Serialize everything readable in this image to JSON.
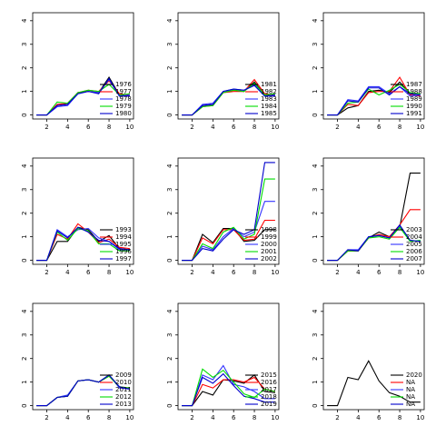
{
  "chart_data": [
    {
      "type": "line",
      "x": [
        1,
        2,
        3,
        4,
        5,
        6,
        7,
        8,
        9,
        10
      ],
      "xlim": [
        0.64,
        10.36
      ],
      "ylim": [
        -0.17,
        4.34
      ],
      "xticks": [
        2,
        4,
        6,
        8,
        10
      ],
      "yticks": [
        0,
        1,
        2,
        3,
        4
      ],
      "legend": "bottomright",
      "series": [
        {
          "name": "1976",
          "color": "#000000",
          "values": [
            0,
            0,
            0.4,
            0.45,
            0.95,
            1.0,
            0.95,
            1.6,
            0.85,
            0.8
          ]
        },
        {
          "name": "1977",
          "color": "#ff0000",
          "values": [
            0,
            0,
            0.45,
            0.5,
            0.95,
            1.05,
            1.0,
            1.45,
            0.9,
            0.85
          ]
        },
        {
          "name": "1978",
          "color": "#3333ff",
          "values": [
            0,
            0,
            0.35,
            0.4,
            0.9,
            1.0,
            0.95,
            1.5,
            0.8,
            0.85
          ]
        },
        {
          "name": "1979",
          "color": "#00dd00",
          "values": [
            0,
            0,
            0.55,
            0.5,
            0.95,
            1.05,
            1.0,
            1.3,
            0.85,
            0.9
          ]
        },
        {
          "name": "1980",
          "color": "#0000cc",
          "values": [
            0,
            0,
            0.4,
            0.45,
            0.9,
            1.0,
            0.9,
            1.55,
            0.8,
            0.8
          ]
        }
      ]
    },
    {
      "type": "line",
      "x": [
        1,
        2,
        3,
        4,
        5,
        6,
        7,
        8,
        9,
        10
      ],
      "xlim": [
        0.64,
        10.36
      ],
      "ylim": [
        -0.17,
        4.34
      ],
      "xticks": [
        2,
        4,
        6,
        8,
        10
      ],
      "yticks": [
        0,
        1,
        2,
        3,
        4
      ],
      "legend": "bottomright",
      "series": [
        {
          "name": "1981",
          "color": "#000000",
          "values": [
            0,
            0,
            0.4,
            0.45,
            0.95,
            1.05,
            1.0,
            1.4,
            0.85,
            0.8
          ]
        },
        {
          "name": "1982",
          "color": "#ff0000",
          "values": [
            0,
            0,
            0.35,
            0.4,
            0.95,
            1.0,
            1.0,
            1.5,
            0.9,
            0.85
          ]
        },
        {
          "name": "1983",
          "color": "#3333ff",
          "values": [
            0,
            0,
            0.45,
            0.5,
            1.0,
            1.1,
            1.05,
            1.3,
            0.8,
            0.8
          ]
        },
        {
          "name": "1984",
          "color": "#00dd00",
          "values": [
            0,
            0,
            0.35,
            0.4,
            0.95,
            1.05,
            1.0,
            1.35,
            0.85,
            0.9
          ]
        },
        {
          "name": "1985",
          "color": "#0000cc",
          "values": [
            0,
            0,
            0.4,
            0.45,
            1.0,
            1.1,
            1.05,
            1.25,
            0.8,
            0.85
          ]
        }
      ]
    },
    {
      "type": "line",
      "x": [
        1,
        2,
        3,
        4,
        5,
        6,
        7,
        8,
        9,
        10
      ],
      "xlim": [
        0.64,
        10.36
      ],
      "ylim": [
        -0.17,
        4.34
      ],
      "xticks": [
        2,
        4,
        6,
        8,
        10
      ],
      "yticks": [
        0,
        1,
        2,
        3,
        4
      ],
      "legend": "bottomright",
      "series": [
        {
          "name": "1987",
          "color": "#000000",
          "values": [
            0,
            0,
            0.3,
            0.4,
            1.0,
            1.05,
            0.95,
            1.4,
            0.9,
            0.85
          ]
        },
        {
          "name": "1988",
          "color": "#ff0000",
          "values": [
            0,
            0,
            0.45,
            0.4,
            0.95,
            1.0,
            1.0,
            1.6,
            0.85,
            0.8
          ]
        },
        {
          "name": "1989",
          "color": "#3333ff",
          "values": [
            0,
            0,
            0.65,
            0.6,
            1.2,
            1.2,
            0.9,
            1.2,
            0.8,
            0.85
          ]
        },
        {
          "name": "1990",
          "color": "#00dd00",
          "values": [
            0,
            0,
            0.5,
            0.55,
            1.1,
            0.85,
            1.05,
            1.3,
            0.95,
            0.9
          ]
        },
        {
          "name": "1991",
          "color": "#0000cc",
          "values": [
            0,
            0,
            0.6,
            0.55,
            1.15,
            1.15,
            0.85,
            1.2,
            0.9,
            0.85
          ]
        }
      ]
    },
    {
      "type": "line",
      "x": [
        1,
        2,
        3,
        4,
        5,
        6,
        7,
        8,
        9,
        10
      ],
      "xlim": [
        0.64,
        10.36
      ],
      "ylim": [
        -0.17,
        4.34
      ],
      "xticks": [
        2,
        4,
        6,
        8,
        10
      ],
      "yticks": [
        0,
        1,
        2,
        3,
        4
      ],
      "legend": "bottomright",
      "series": [
        {
          "name": "1993",
          "color": "#000000",
          "values": [
            0,
            0,
            0.8,
            0.8,
            1.4,
            1.3,
            0.8,
            1.05,
            0.5,
            0.45
          ]
        },
        {
          "name": "1994",
          "color": "#ff0000",
          "values": [
            0,
            0,
            1.1,
            0.9,
            1.55,
            1.2,
            0.75,
            0.9,
            0.55,
            0.5
          ]
        },
        {
          "name": "1995",
          "color": "#3333ff",
          "values": [
            0,
            0,
            1.3,
            1.0,
            1.3,
            1.35,
            0.95,
            0.8,
            0.45,
            0.45
          ]
        },
        {
          "name": "1996",
          "color": "#00dd00",
          "values": [
            0,
            0,
            1.2,
            0.85,
            1.35,
            1.25,
            0.7,
            0.7,
            0.4,
            0.4
          ]
        },
        {
          "name": "1997",
          "color": "#0000cc",
          "values": [
            0,
            0,
            1.25,
            0.95,
            1.4,
            1.2,
            0.85,
            0.8,
            0.5,
            0.45
          ]
        }
      ]
    },
    {
      "type": "line",
      "x": [
        1,
        2,
        3,
        4,
        5,
        6,
        7,
        8,
        9,
        10
      ],
      "xlim": [
        0.64,
        10.36
      ],
      "ylim": [
        -0.17,
        4.34
      ],
      "xticks": [
        2,
        4,
        6,
        8,
        10
      ],
      "yticks": [
        0,
        1,
        2,
        3,
        4
      ],
      "legend": "bottomright",
      "series": [
        {
          "name": "1998",
          "color": "#000000",
          "values": [
            0,
            0,
            1.1,
            0.75,
            1.35,
            1.35,
            0.8,
            0.85,
            1.3,
            1.3
          ]
        },
        {
          "name": "1999",
          "color": "#ff0000",
          "values": [
            0,
            0,
            0.95,
            0.7,
            1.3,
            1.3,
            0.85,
            0.9,
            1.7,
            1.7
          ]
        },
        {
          "name": "2000",
          "color": "#3333ff",
          "values": [
            0,
            0,
            0.6,
            0.45,
            1.0,
            1.35,
            1.0,
            1.2,
            2.5,
            2.5
          ]
        },
        {
          "name": "2001",
          "color": "#00dd00",
          "values": [
            0,
            0,
            0.7,
            0.5,
            1.2,
            1.4,
            0.9,
            1.1,
            3.45,
            3.45
          ]
        },
        {
          "name": "2002",
          "color": "#0000cc",
          "values": [
            0,
            0,
            0.5,
            0.4,
            0.9,
            1.3,
            1.1,
            1.3,
            4.15,
            4.15
          ]
        }
      ]
    },
    {
      "type": "line",
      "x": [
        1,
        2,
        3,
        4,
        5,
        6,
        7,
        8,
        9,
        10
      ],
      "xlim": [
        0.64,
        10.36
      ],
      "ylim": [
        -0.17,
        4.34
      ],
      "xticks": [
        2,
        4,
        6,
        8,
        10
      ],
      "yticks": [
        0,
        1,
        2,
        3,
        4
      ],
      "legend": "bottomright",
      "series": [
        {
          "name": "2003",
          "color": "#000000",
          "values": [
            0,
            0,
            0.4,
            0.4,
            0.95,
            1.2,
            1.0,
            1.4,
            3.7,
            3.7
          ]
        },
        {
          "name": "2004",
          "color": "#ff0000",
          "values": [
            0,
            0,
            0.4,
            0.4,
            0.95,
            1.1,
            1.0,
            1.5,
            2.15,
            2.15
          ]
        },
        {
          "name": "2005",
          "color": "#3333ff",
          "values": [
            0,
            0,
            0.45,
            0.45,
            1.0,
            1.05,
            0.95,
            1.45,
            0.85,
            0.8
          ]
        },
        {
          "name": "2006",
          "color": "#00dd00",
          "values": [
            0,
            0,
            0.4,
            0.4,
            0.95,
            1.0,
            0.9,
            1.4,
            0.8,
            0.85
          ]
        },
        {
          "name": "2007",
          "color": "#0000cc",
          "values": [
            0,
            0,
            0.45,
            0.4,
            1.0,
            1.05,
            0.95,
            1.5,
            0.85,
            0.8
          ]
        }
      ]
    },
    {
      "type": "line",
      "x": [
        1,
        2,
        3,
        4,
        5,
        6,
        7,
        8,
        9,
        10
      ],
      "xlim": [
        0.64,
        10.36
      ],
      "ylim": [
        -0.17,
        4.34
      ],
      "xticks": [
        2,
        4,
        6,
        8,
        10
      ],
      "yticks": [
        0,
        1,
        2,
        3,
        4
      ],
      "legend": "bottomright",
      "series": [
        {
          "name": "2009",
          "color": "#000000",
          "values": [
            0,
            0,
            0.35,
            0.4,
            1.05,
            1.1,
            1.0,
            1.3,
            0.8,
            0.7
          ]
        },
        {
          "name": "2010",
          "color": "#ff0000",
          "values": [
            0,
            0,
            0.35,
            0.4,
            1.05,
            1.1,
            1.0,
            1.25,
            0.8,
            0.75
          ]
        },
        {
          "name": "2011",
          "color": "#3333ff",
          "values": [
            0,
            0,
            0.35,
            0.45,
            1.05,
            1.1,
            1.0,
            1.3,
            0.75,
            0.7
          ]
        },
        {
          "name": "2012",
          "color": "#00dd00",
          "values": [
            0,
            0,
            0.35,
            0.4,
            1.05,
            1.1,
            1.0,
            1.25,
            0.8,
            0.75
          ]
        },
        {
          "name": "2013",
          "color": "#0000cc",
          "values": [
            0,
            0,
            0.35,
            0.4,
            1.05,
            1.1,
            1.0,
            1.3,
            0.8,
            0.7
          ]
        }
      ]
    },
    {
      "type": "line",
      "x": [
        1,
        2,
        3,
        4,
        5,
        6,
        7,
        8,
        9,
        10
      ],
      "xlim": [
        0.64,
        10.36
      ],
      "ylim": [
        -0.17,
        4.34
      ],
      "xticks": [
        2,
        4,
        6,
        8,
        10
      ],
      "yticks": [
        0,
        1,
        2,
        3,
        4
      ],
      "legend": "bottomright",
      "series": [
        {
          "name": "2015",
          "color": "#000000",
          "values": [
            0,
            0,
            0.6,
            0.45,
            1.1,
            1.05,
            0.95,
            1.3,
            0.6,
            0.55
          ]
        },
        {
          "name": "2016",
          "color": "#ff0000",
          "values": [
            0,
            0,
            0.9,
            0.75,
            1.1,
            1.1,
            1.0,
            1.2,
            0.7,
            0.6
          ]
        },
        {
          "name": "2017",
          "color": "#3333ff",
          "values": [
            0,
            0,
            1.3,
            1.1,
            1.7,
            0.9,
            0.8,
            0.6,
            0.3,
            0.3
          ]
        },
        {
          "name": "2018",
          "color": "#00dd00",
          "values": [
            0,
            0,
            1.55,
            1.2,
            1.5,
            1.0,
            0.5,
            0.35,
            0.7,
            0.6
          ]
        },
        {
          "name": "2019",
          "color": "#0000cc",
          "values": [
            0,
            0,
            1.2,
            0.95,
            1.35,
            0.85,
            0.4,
            0.3,
            0.15,
            0.15
          ]
        }
      ]
    },
    {
      "type": "line",
      "x": [
        1,
        2,
        3,
        4,
        5,
        6,
        7,
        8,
        9,
        10
      ],
      "xlim": [
        0.64,
        10.36
      ],
      "ylim": [
        -0.17,
        4.34
      ],
      "xticks": [
        2,
        4,
        6,
        8,
        10
      ],
      "yticks": [
        0,
        1,
        2,
        3,
        4
      ],
      "legend": "bottomright",
      "series": [
        {
          "name": "2020",
          "color": "#000000",
          "values": [
            0,
            0,
            1.2,
            1.1,
            1.9,
            1.05,
            0.55,
            0.4,
            0.15,
            0.15
          ]
        },
        {
          "name": "NA",
          "color": "#ff0000",
          "values": [
            null,
            null,
            null,
            null,
            null,
            null,
            null,
            null,
            null,
            null
          ]
        },
        {
          "name": "NA",
          "color": "#3333ff",
          "values": [
            null,
            null,
            null,
            null,
            null,
            null,
            null,
            null,
            null,
            null
          ]
        },
        {
          "name": "NA",
          "color": "#00dd00",
          "values": [
            null,
            null,
            null,
            null,
            null,
            null,
            null,
            null,
            null,
            null
          ]
        },
        {
          "name": "NA",
          "color": "#0000cc",
          "values": [
            null,
            null,
            null,
            null,
            null,
            null,
            null,
            null,
            null,
            null
          ]
        }
      ]
    }
  ]
}
